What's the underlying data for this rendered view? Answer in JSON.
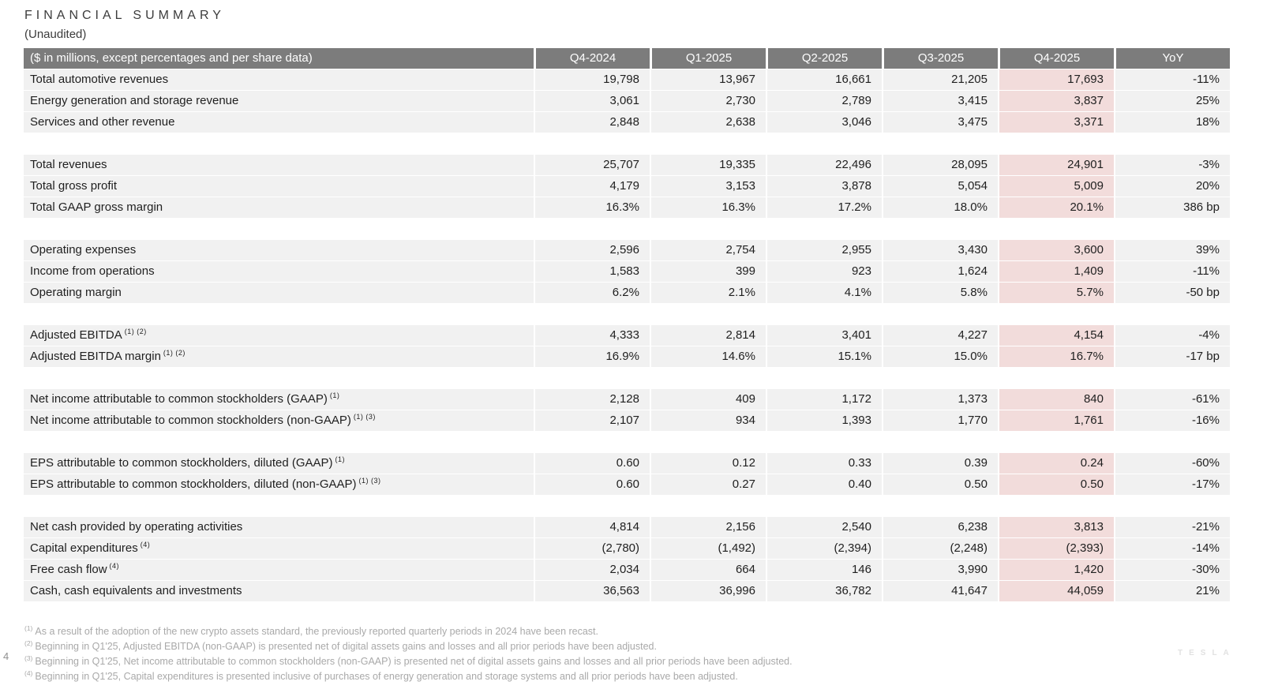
{
  "page": {
    "title": "FINANCIAL SUMMARY",
    "subtitle": "(Unaudited)",
    "page_number": "4",
    "watermark": "TESLA"
  },
  "colors": {
    "header_bg": "#7c7c7c",
    "header_text": "#ffffff",
    "row_bg": "#f1f1f1",
    "highlight_bg": "#f2dcdb",
    "footnote_text": "#a9a9a9"
  },
  "table": {
    "header": [
      "($ in millions, except percentages and per share data)",
      "Q4-2024",
      "Q1-2025",
      "Q2-2025",
      "Q3-2025",
      "Q4-2025",
      "YoY"
    ],
    "highlight_column": "Q4-2025",
    "highlight_column_index": 5,
    "rows": [
      {
        "type": "data",
        "label": "Total automotive revenues",
        "sup": "",
        "values": [
          "19,798",
          "13,967",
          "16,661",
          "21,205",
          "17,693",
          "-11%"
        ]
      },
      {
        "type": "data",
        "label": "Energy generation and storage revenue",
        "sup": "",
        "values": [
          "3,061",
          "2,730",
          "2,789",
          "3,415",
          "3,837",
          "25%"
        ]
      },
      {
        "type": "data",
        "label": "Services and other revenue",
        "sup": "",
        "values": [
          "2,848",
          "2,638",
          "3,046",
          "3,475",
          "3,371",
          "18%"
        ]
      },
      {
        "type": "spacer"
      },
      {
        "type": "data",
        "label": "Total revenues",
        "sup": "",
        "values": [
          "25,707",
          "19,335",
          "22,496",
          "28,095",
          "24,901",
          "-3%"
        ]
      },
      {
        "type": "data",
        "label": "Total gross profit",
        "sup": "",
        "values": [
          "4,179",
          "3,153",
          "3,878",
          "5,054",
          "5,009",
          "20%"
        ]
      },
      {
        "type": "data",
        "label": "Total GAAP gross margin",
        "sup": "",
        "values": [
          "16.3%",
          "16.3%",
          "17.2%",
          "18.0%",
          "20.1%",
          "386 bp"
        ]
      },
      {
        "type": "spacer"
      },
      {
        "type": "data",
        "label": "Operating expenses",
        "sup": "",
        "values": [
          "2,596",
          "2,754",
          "2,955",
          "3,430",
          "3,600",
          "39%"
        ]
      },
      {
        "type": "data",
        "label": "Income from operations",
        "sup": "",
        "values": [
          "1,583",
          "399",
          "923",
          "1,624",
          "1,409",
          "-11%"
        ]
      },
      {
        "type": "data",
        "label": "Operating margin",
        "sup": "",
        "values": [
          "6.2%",
          "2.1%",
          "4.1%",
          "5.8%",
          "5.7%",
          "-50 bp"
        ]
      },
      {
        "type": "spacer"
      },
      {
        "type": "data",
        "label": "Adjusted EBITDA",
        "sup": "(1) (2)",
        "values": [
          "4,333",
          "2,814",
          "3,401",
          "4,227",
          "4,154",
          "-4%"
        ]
      },
      {
        "type": "data",
        "label": "Adjusted EBITDA margin",
        "sup": "(1) (2)",
        "values": [
          "16.9%",
          "14.6%",
          "15.1%",
          "15.0%",
          "16.7%",
          "-17 bp"
        ]
      },
      {
        "type": "spacer"
      },
      {
        "type": "data",
        "label": "Net income attributable to common stockholders (GAAP)",
        "sup": "(1)",
        "values": [
          "2,128",
          "409",
          "1,172",
          "1,373",
          "840",
          "-61%"
        ]
      },
      {
        "type": "data",
        "label": "Net income attributable to common stockholders (non-GAAP)",
        "sup": "(1) (3)",
        "values": [
          "2,107",
          "934",
          "1,393",
          "1,770",
          "1,761",
          "-16%"
        ]
      },
      {
        "type": "spacer"
      },
      {
        "type": "data",
        "label": "EPS attributable to common stockholders, diluted (GAAP)",
        "sup": "(1)",
        "values": [
          "0.60",
          "0.12",
          "0.33",
          "0.39",
          "0.24",
          "-60%"
        ]
      },
      {
        "type": "data",
        "label": "EPS attributable to common stockholders, diluted (non-GAAP)",
        "sup": "(1) (3)",
        "values": [
          "0.60",
          "0.27",
          "0.40",
          "0.50",
          "0.50",
          "-17%"
        ]
      },
      {
        "type": "spacer"
      },
      {
        "type": "data",
        "label": "Net cash provided by operating activities",
        "sup": "",
        "values": [
          "4,814",
          "2,156",
          "2,540",
          "6,238",
          "3,813",
          "-21%"
        ]
      },
      {
        "type": "data",
        "label": "Capital expenditures",
        "sup": "(4)",
        "values": [
          "(2,780)",
          "(1,492)",
          "(2,394)",
          "(2,248)",
          "(2,393)",
          "-14%"
        ]
      },
      {
        "type": "data",
        "label": "Free cash flow",
        "sup": "(4)",
        "values": [
          "2,034",
          "664",
          "146",
          "3,990",
          "1,420",
          "-30%"
        ]
      },
      {
        "type": "data",
        "label": "Cash, cash equivalents and investments",
        "sup": "",
        "values": [
          "36,563",
          "36,996",
          "36,782",
          "41,647",
          "44,059",
          "21%"
        ]
      }
    ]
  },
  "footnotes": [
    {
      "marker": "(1)",
      "text": "As a result of the adoption of the new crypto assets standard, the previously reported quarterly periods in 2024 have been recast."
    },
    {
      "marker": "(2)",
      "text": "Beginning in Q1'25, Adjusted EBITDA (non-GAAP) is presented net of digital assets gains and losses and all prior periods have been adjusted."
    },
    {
      "marker": "(3)",
      "text": "Beginning in Q1'25, Net income attributable to common stockholders (non-GAAP) is presented net of digital assets gains and losses and all prior periods have been adjusted."
    },
    {
      "marker": "(4)",
      "text": "Beginning in Q1'25, Capital expenditures is presented inclusive of purchases of energy generation and storage systems and all prior periods have been adjusted."
    }
  ]
}
